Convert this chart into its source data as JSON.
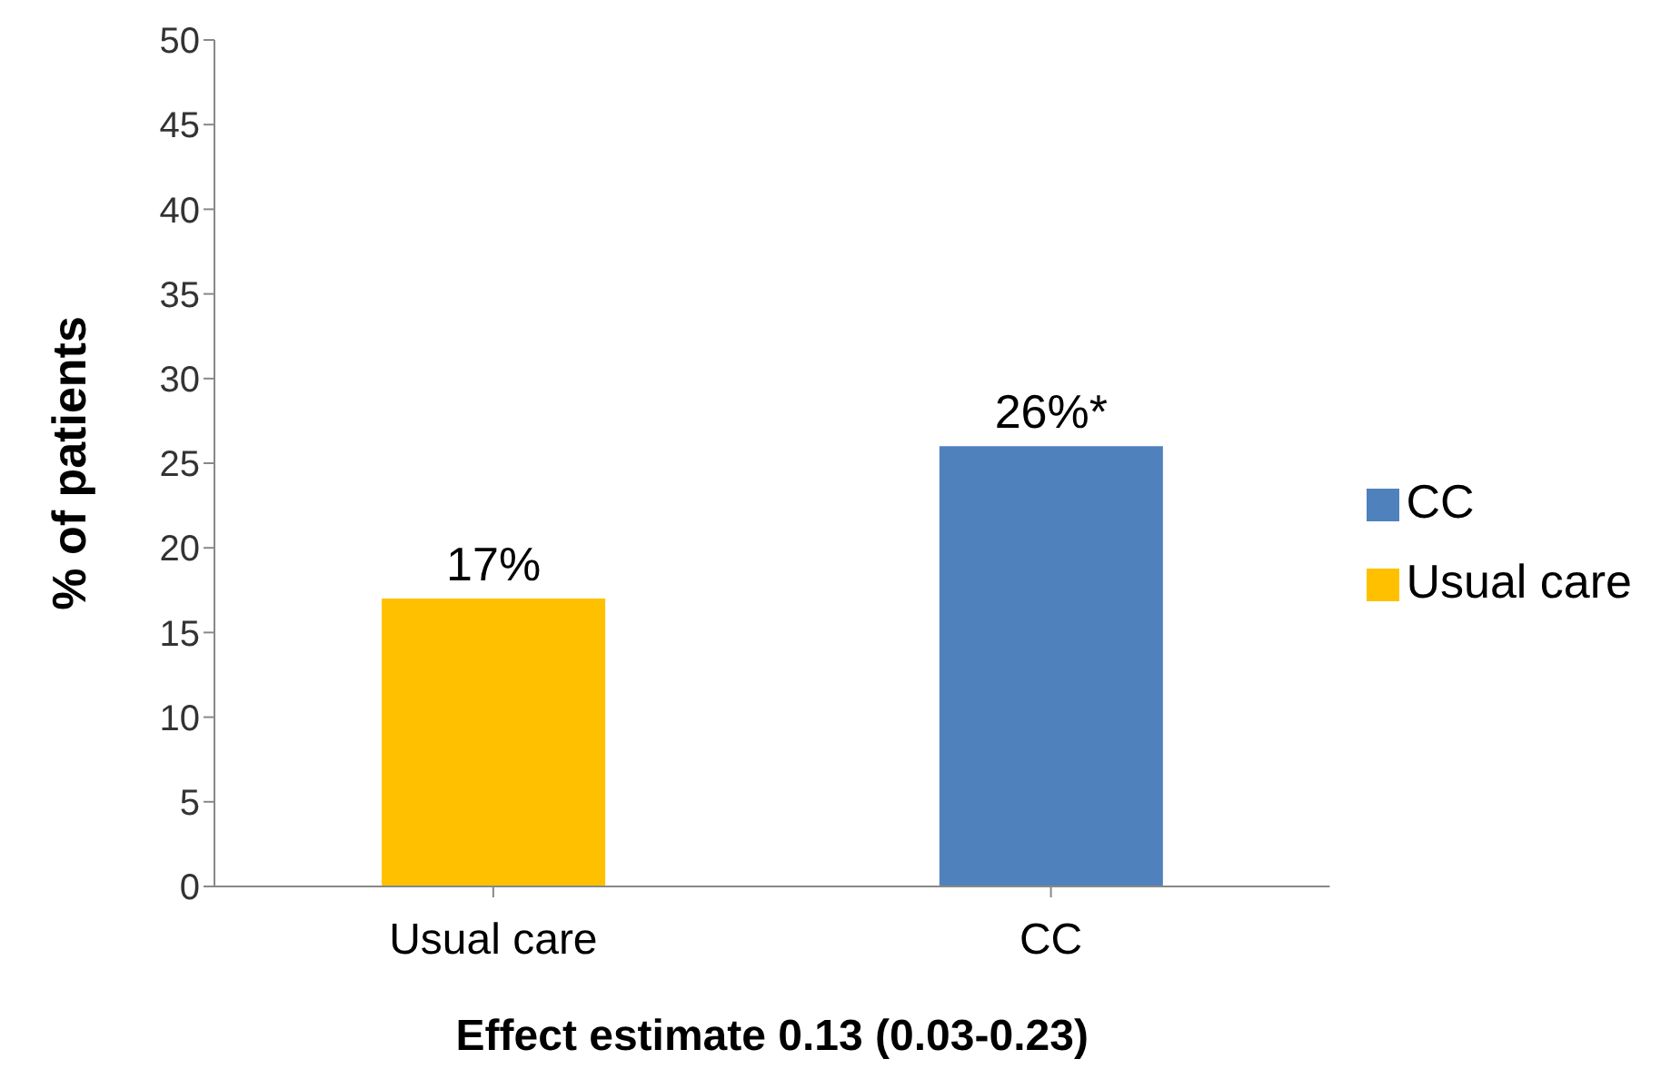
{
  "chart_data": {
    "type": "bar",
    "categories": [
      "Usual care",
      "CC"
    ],
    "stacked": true,
    "series": [
      {
        "name": "Usual care",
        "color": "#ffc000",
        "values": [
          17,
          null
        ],
        "value_labels": [
          "17%",
          null
        ]
      },
      {
        "name": "CC",
        "color": "#4f81bd",
        "values": [
          null,
          26
        ],
        "value_labels": [
          null,
          "26%*"
        ]
      }
    ],
    "xlabel": "Effect estimate 0.13 (0.03-0.23)",
    "ylabel": "% of patients",
    "ylim": [
      0,
      50
    ],
    "yticks": [
      0,
      5,
      10,
      15,
      20,
      25,
      30,
      35,
      40,
      45,
      50
    ],
    "grid": false,
    "legend": "right"
  }
}
